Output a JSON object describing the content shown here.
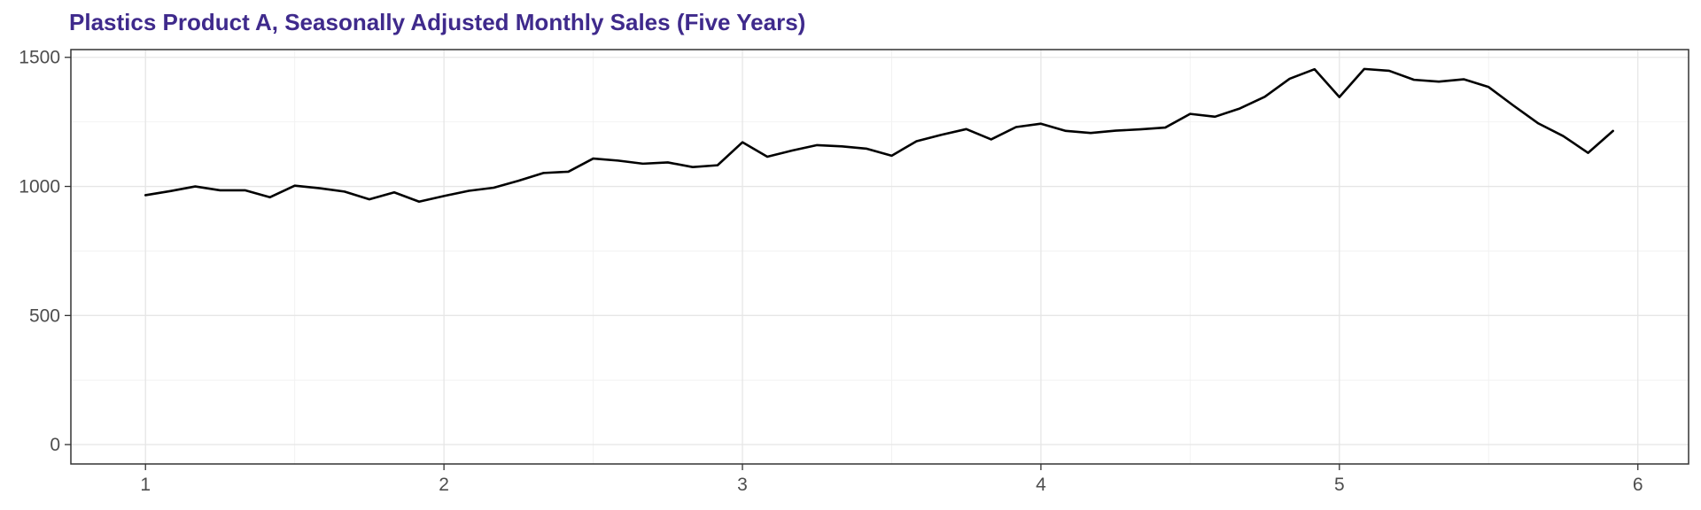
{
  "chart_data": {
    "type": "line",
    "title": "Plastics Product A, Seasonally Adjusted Monthly Sales (Five Years)",
    "xlabel": "",
    "ylabel": "",
    "xlim": [
      0.75,
      6.17
    ],
    "ylim": [
      -75,
      1530
    ],
    "grid": true,
    "x_ticks": [
      1,
      2,
      3,
      4,
      5,
      6
    ],
    "x_tick_labels": [
      "1",
      "2",
      "3",
      "4",
      "5",
      "6"
    ],
    "y_ticks": [
      0,
      500,
      1000,
      1500
    ],
    "y_tick_labels": [
      "0",
      "500",
      "1000",
      "1500"
    ],
    "series": [
      {
        "color": "#000000",
        "x": [
          1.0,
          1.0833,
          1.1667,
          1.25,
          1.3333,
          1.4167,
          1.5,
          1.5833,
          1.6667,
          1.75,
          1.8333,
          1.9167,
          2.0,
          2.0833,
          2.1667,
          2.25,
          2.3333,
          2.4167,
          2.5,
          2.5833,
          2.6667,
          2.75,
          2.8333,
          2.9167,
          3.0,
          3.0833,
          3.1667,
          3.25,
          3.3333,
          3.4167,
          3.5,
          3.5833,
          3.6667,
          3.75,
          3.8333,
          3.9167,
          4.0,
          4.0833,
          4.1667,
          4.25,
          4.3333,
          4.4167,
          4.5,
          4.5833,
          4.6667,
          4.75,
          4.8333,
          4.9167,
          5.0,
          5.0833,
          5.1667,
          5.25,
          5.3333,
          5.4167,
          5.5,
          5.5833,
          5.6667,
          5.75,
          5.8333,
          5.9167
        ],
        "values": [
          966,
          982,
          1000,
          985,
          985,
          958,
          1003,
          993,
          980,
          950,
          977,
          941,
          963,
          983,
          995,
          1022,
          1052,
          1057,
          1108,
          1100,
          1088,
          1093,
          1075,
          1082,
          1171,
          1115,
          1139,
          1160,
          1155,
          1146,
          1119,
          1175,
          1200,
          1222,
          1182,
          1230,
          1243,
          1215,
          1207,
          1216,
          1221,
          1228,
          1281,
          1270,
          1302,
          1347,
          1417,
          1454,
          1346,
          1455,
          1448,
          1413,
          1406,
          1415,
          1385,
          1313,
          1244,
          1195,
          1130,
          1215
        ]
      }
    ]
  }
}
